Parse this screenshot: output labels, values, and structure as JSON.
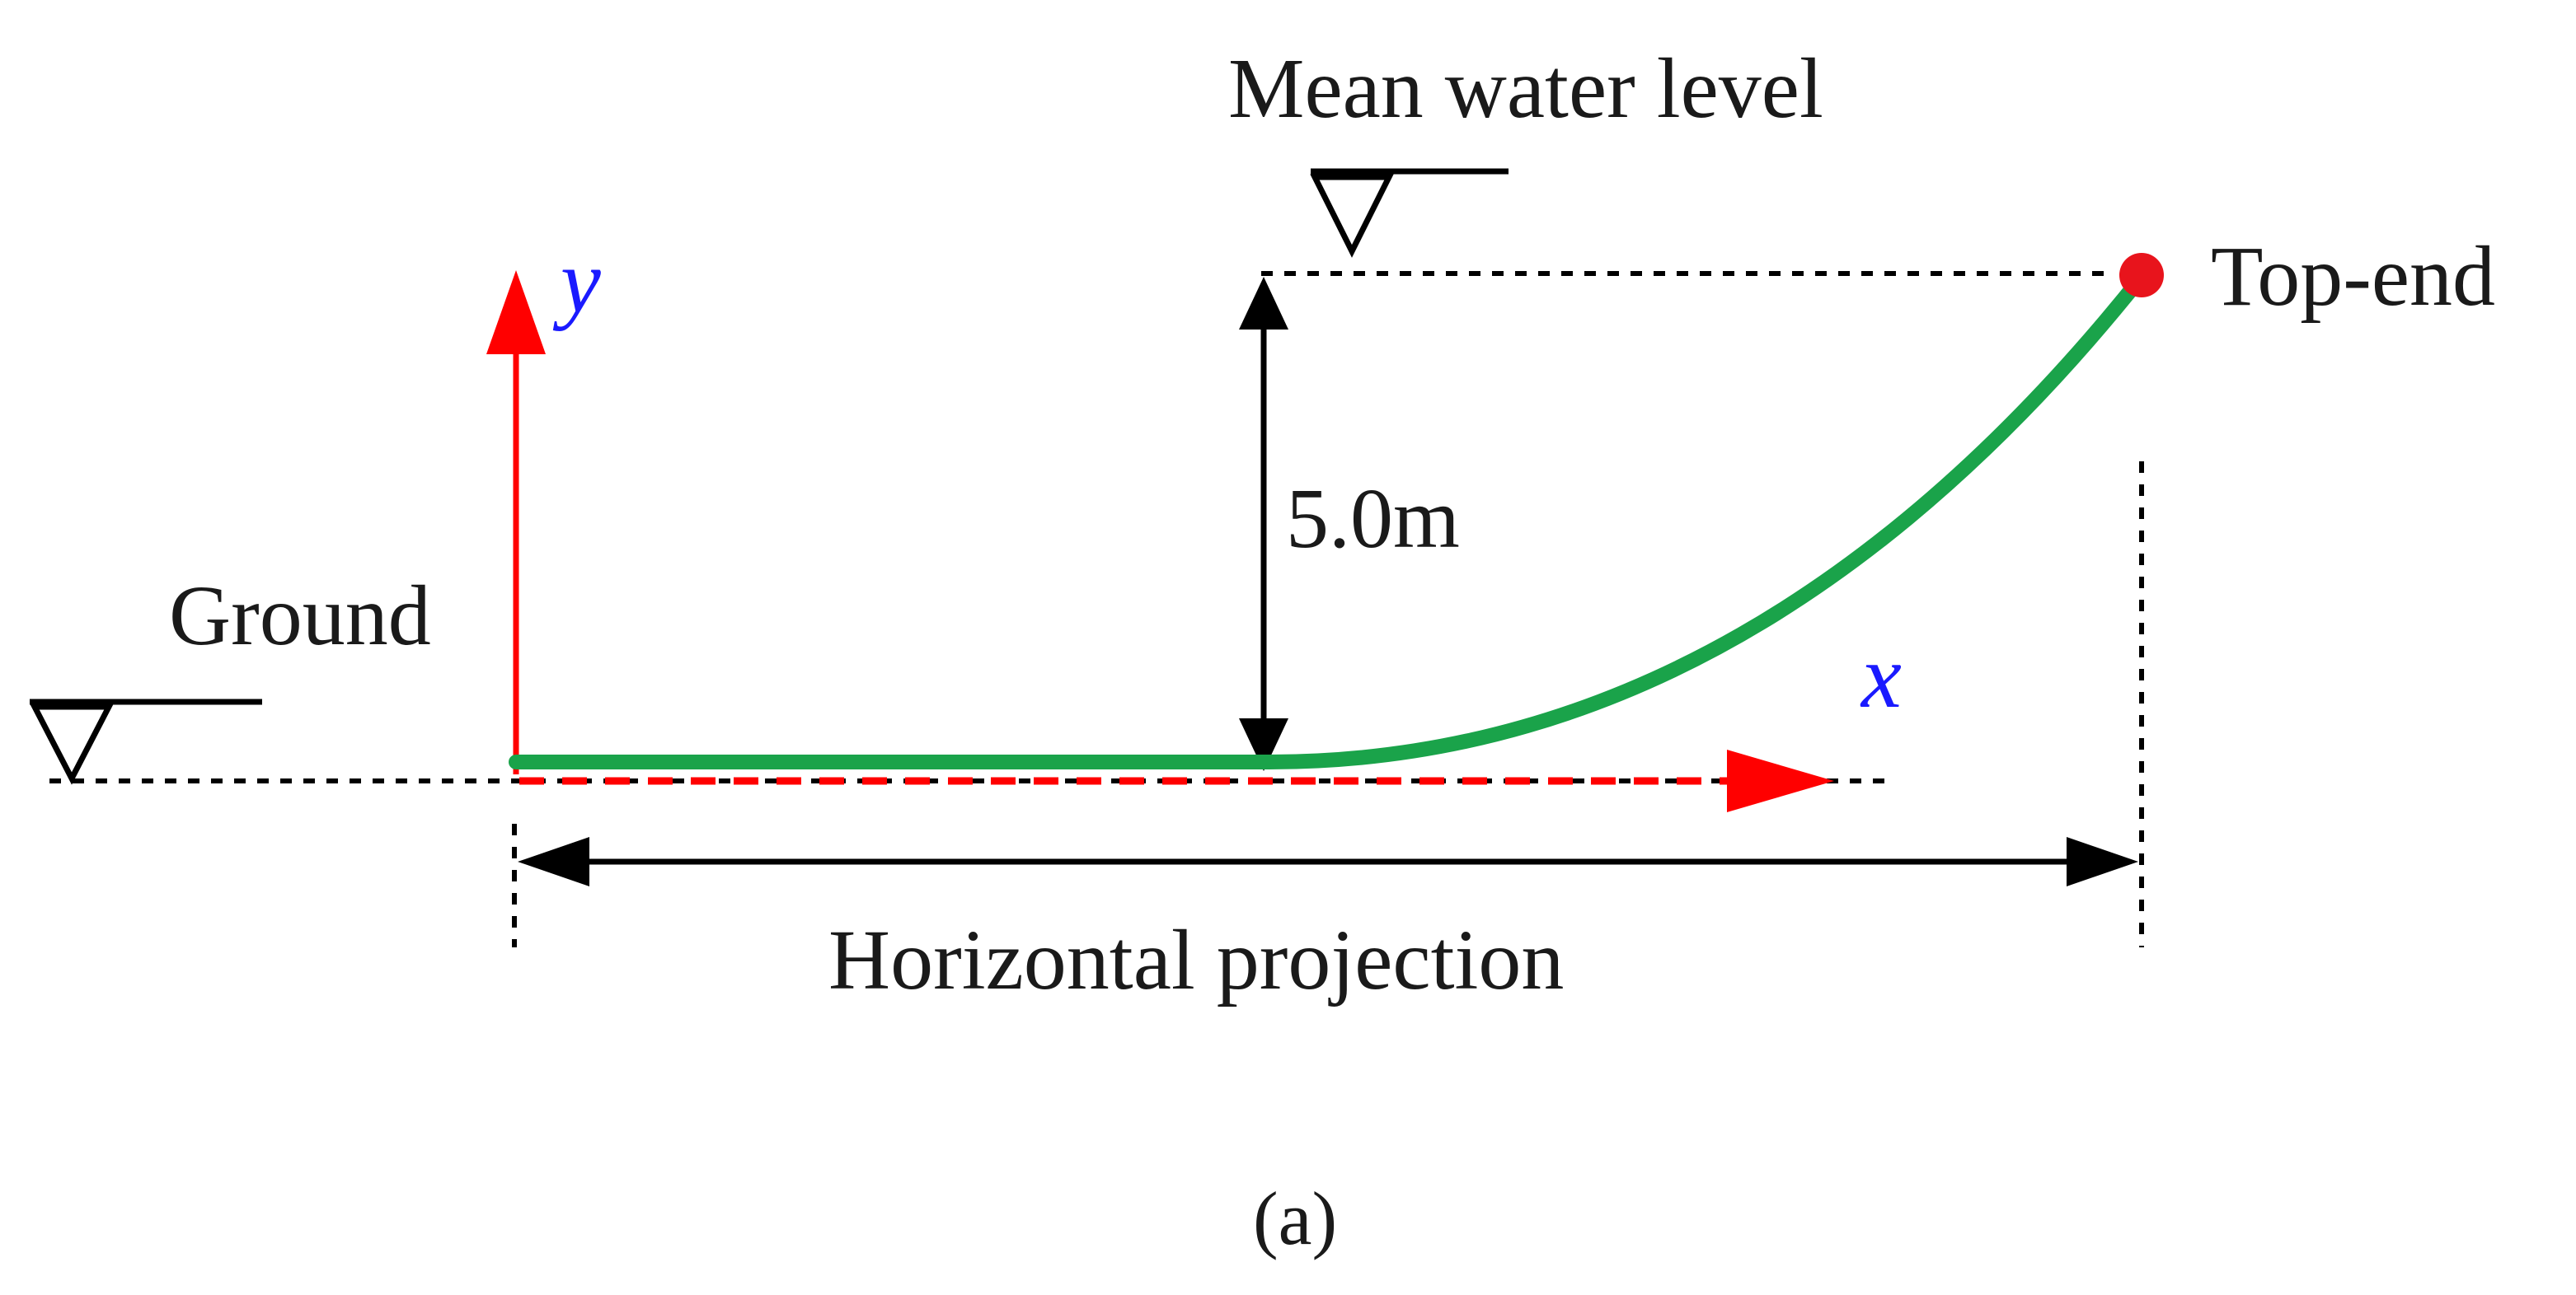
{
  "labels": {
    "mean_water_level": "Mean water level",
    "top_end": "Top-end",
    "depth": "5.0m",
    "ground": "Ground",
    "horizontal_projection": "Horizontal projection",
    "axis_x": "x",
    "axis_y": "y",
    "caption": "(a)"
  },
  "colors": {
    "riser": "#1aa34a",
    "axis": "#ff0000",
    "axis_label": "#1a1aff",
    "top_end_marker": "#e8141c",
    "line": "#000000"
  },
  "icons": {
    "water_level_symbol": "inverted-triangle",
    "ground_level_symbol": "inverted-triangle"
  }
}
